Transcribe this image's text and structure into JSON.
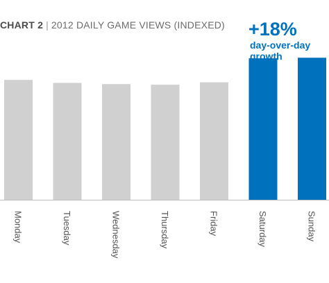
{
  "header": {
    "chart_tag": "CHART 2",
    "separator": "|",
    "subtitle": "2012 DAILY GAME VIEWS (INDEXED)"
  },
  "callout": {
    "value": "+18%",
    "text": "day-over-day growth"
  },
  "colors": {
    "normal_bar": "#d0d0d0",
    "highlight_bar": "#0071bc",
    "axis_line": "#bbbbbb",
    "tick_label": "#555555"
  },
  "chart_data": {
    "type": "bar",
    "title": "CHART 2 | 2012 DAILY GAME VIEWS (INDEXED)",
    "categories": [
      "Monday",
      "Tuesday",
      "Wednesday",
      "Thursday",
      "Friday",
      "Saturday",
      "Sunday"
    ],
    "values": [
      100,
      97.5,
      96.5,
      96,
      98,
      118,
      118.5
    ],
    "highlight": [
      false,
      false,
      false,
      false,
      false,
      true,
      true
    ],
    "ylim": [
      0,
      125
    ],
    "grid": false,
    "legend": "none",
    "xlabel": "",
    "ylabel": ""
  }
}
